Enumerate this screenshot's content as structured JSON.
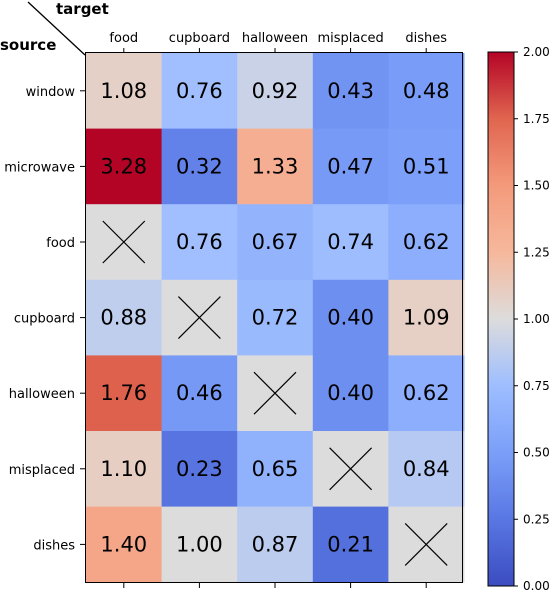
{
  "chart_data": {
    "type": "heatmap",
    "corner_labels": {
      "x_axis": "target",
      "y_axis": "source"
    },
    "x_categories": [
      "food",
      "cupboard",
      "halloween",
      "misplaced",
      "dishes"
    ],
    "y_categories": [
      "window",
      "microwave",
      "food",
      "cupboard",
      "halloween",
      "misplaced",
      "dishes"
    ],
    "values": [
      [
        1.08,
        0.76,
        0.92,
        0.43,
        0.48
      ],
      [
        3.28,
        0.32,
        1.33,
        0.47,
        0.51
      ],
      [
        null,
        0.76,
        0.67,
        0.74,
        0.62
      ],
      [
        0.88,
        null,
        0.72,
        0.4,
        1.09
      ],
      [
        1.76,
        0.46,
        null,
        0.4,
        0.62
      ],
      [
        1.1,
        0.23,
        0.65,
        null,
        0.84
      ],
      [
        1.4,
        1.0,
        0.87,
        0.21,
        null
      ]
    ],
    "cell_labels": [
      [
        "1.08",
        "0.76",
        "0.92",
        "0.43",
        "0.48"
      ],
      [
        "3.28",
        "0.32",
        "1.33",
        "0.47",
        "0.51"
      ],
      [
        null,
        "0.76",
        "0.67",
        "0.74",
        "0.62"
      ],
      [
        "0.88",
        null,
        "0.72",
        "0.40",
        "1.09"
      ],
      [
        "1.76",
        "0.46",
        null,
        "0.40",
        "0.62"
      ],
      [
        "1.10",
        "0.23",
        "0.65",
        null,
        "0.84"
      ],
      [
        "1.40",
        "1.00",
        "0.87",
        "0.21",
        null
      ]
    ],
    "colormap": "coolwarm",
    "color_range": [
      0.0,
      2.0
    ],
    "colorbar_ticks": [
      "0.00",
      "0.25",
      "0.50",
      "0.75",
      "1.00",
      "1.25",
      "1.50",
      "1.75",
      "2.00"
    ],
    "missing_marker": "X",
    "grid": false,
    "colorbar_position": "right"
  }
}
